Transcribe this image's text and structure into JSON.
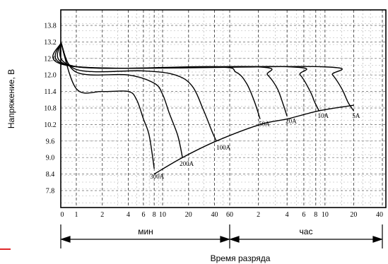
{
  "chart_data": {
    "type": "line",
    "ylabel": "Напряжение, В",
    "xlabel": "Время разряда",
    "y_ticks": [
      "13.8",
      "13.2",
      "12.6",
      "12.0",
      "11.4",
      "10.8",
      "10.2",
      "9.6",
      "9.0",
      "8.4",
      "7.8"
    ],
    "ylim": [
      7.8,
      13.8
    ],
    "x_tick_labels": [
      "0",
      "1",
      "2",
      "4",
      "6",
      "8",
      "10",
      "20",
      "40",
      "60",
      "2",
      "4",
      "6",
      "8",
      "10",
      "20",
      "40"
    ],
    "x_scale": "log (segmented: minutes then hours)",
    "x_segments": [
      {
        "label": "мин",
        "range": [
          "0",
          "60"
        ]
      },
      {
        "label": "час",
        "range": [
          "60",
          "40"
        ]
      }
    ],
    "grid": true,
    "series": [
      {
        "name": "300A",
        "points": [
          [
            0,
            13.2
          ],
          [
            1,
            11.5
          ],
          [
            2,
            11.4
          ],
          [
            4,
            11.4
          ],
          [
            5,
            11.1
          ],
          [
            6,
            10.4
          ],
          [
            7,
            9.8
          ],
          [
            8,
            8.6
          ]
        ]
      },
      {
        "name": "200A",
        "points": [
          [
            0,
            13.2
          ],
          [
            1,
            12.1
          ],
          [
            4,
            12.0
          ],
          [
            8,
            11.7
          ],
          [
            10,
            11.3
          ],
          [
            12,
            10.6
          ],
          [
            15,
            9.8
          ],
          [
            17,
            9.0
          ]
        ]
      },
      {
        "name": "100A",
        "points": [
          [
            0,
            13.2
          ],
          [
            1,
            12.2
          ],
          [
            6,
            12.15
          ],
          [
            14,
            12.0
          ],
          [
            22,
            11.6
          ],
          [
            30,
            10.7
          ],
          [
            38,
            9.9
          ],
          [
            42,
            9.6
          ]
        ]
      },
      {
        "name": "50A",
        "points": [
          [
            0,
            13.2
          ],
          [
            1,
            12.3
          ],
          [
            40,
            12.3
          ],
          [
            70,
            12.1
          ],
          [
            90,
            11.7
          ],
          [
            110,
            11.0
          ],
          [
            125,
            10.4
          ]
        ]
      },
      {
        "name": "20A",
        "points": [
          [
            0,
            13.2
          ],
          [
            1,
            12.3
          ],
          [
            110,
            12.3
          ],
          [
            150,
            12.0
          ],
          [
            190,
            11.5
          ],
          [
            220,
            10.9
          ],
          [
            240,
            10.5
          ]
        ]
      },
      {
        "name": "10A",
        "points": [
          [
            0,
            13.2
          ],
          [
            1,
            12.3
          ],
          [
            240,
            12.3
          ],
          [
            330,
            12.0
          ],
          [
            420,
            11.4
          ],
          [
            470,
            11.0
          ],
          [
            520,
            10.7
          ]
        ]
      },
      {
        "name": "5A",
        "points": [
          [
            0,
            13.2
          ],
          [
            1,
            12.3
          ],
          [
            540,
            12.3
          ],
          [
            720,
            12.0
          ],
          [
            900,
            11.5
          ],
          [
            1050,
            11.0
          ],
          [
            1200,
            10.7
          ]
        ]
      }
    ],
    "end_voltage_curve": [
      [
        8,
        8.4
      ],
      [
        17,
        9.0
      ],
      [
        42,
        9.6
      ],
      [
        125,
        10.2
      ],
      [
        240,
        10.4
      ],
      [
        520,
        10.7
      ],
      [
        1200,
        10.9
      ]
    ]
  }
}
